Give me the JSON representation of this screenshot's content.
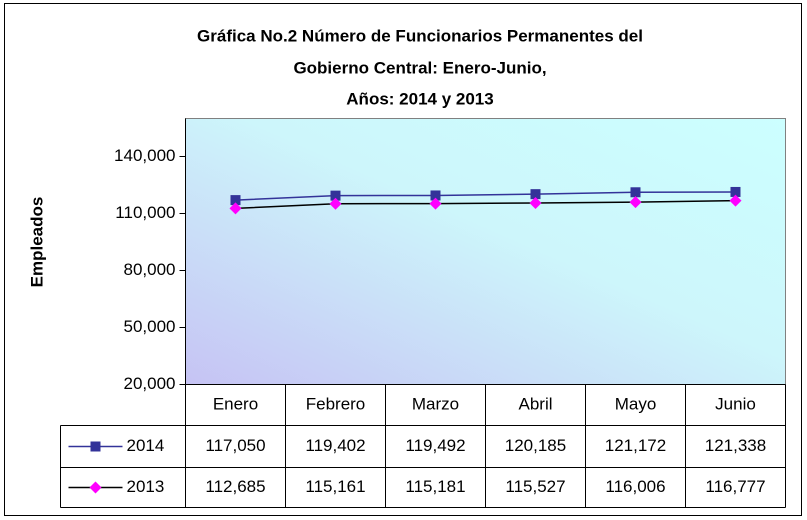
{
  "chart_data": {
    "type": "line",
    "title_lines": [
      "Gráfica No.2 Número de Funcionarios Permanentes del",
      "Gobierno Central: Enero-Junio,",
      "Años: 2014 y 2013"
    ],
    "y_label": "Empleados",
    "categories": [
      "Enero",
      "Febrero",
      "Marzo",
      "Abril",
      "Mayo",
      "Junio"
    ],
    "series": [
      {
        "name": "2014",
        "color": "#333399",
        "marker": "square",
        "marker_color": "#333399",
        "values": [
          117050,
          119402,
          119492,
          120185,
          121172,
          121338
        ],
        "value_labels": [
          "117,050",
          "119,402",
          "119,492",
          "120,185",
          "121,172",
          "121,338"
        ]
      },
      {
        "name": "2013",
        "color": "#000000",
        "marker": "diamond",
        "marker_color": "#ff00ff",
        "values": [
          112685,
          115161,
          115181,
          115527,
          116006,
          116777
        ],
        "value_labels": [
          "112,685",
          "115,161",
          "115,181",
          "115,527",
          "116,006",
          "116,777"
        ]
      }
    ],
    "ylim": [
      20000,
      160000
    ],
    "yticks": [
      {
        "value": 20000,
        "label": "20,000"
      },
      {
        "value": 50000,
        "label": "50,000"
      },
      {
        "value": 80000,
        "label": "80,000"
      },
      {
        "value": 110000,
        "label": "110,000"
      },
      {
        "value": 140000,
        "label": "140,000"
      }
    ],
    "grid": false
  }
}
